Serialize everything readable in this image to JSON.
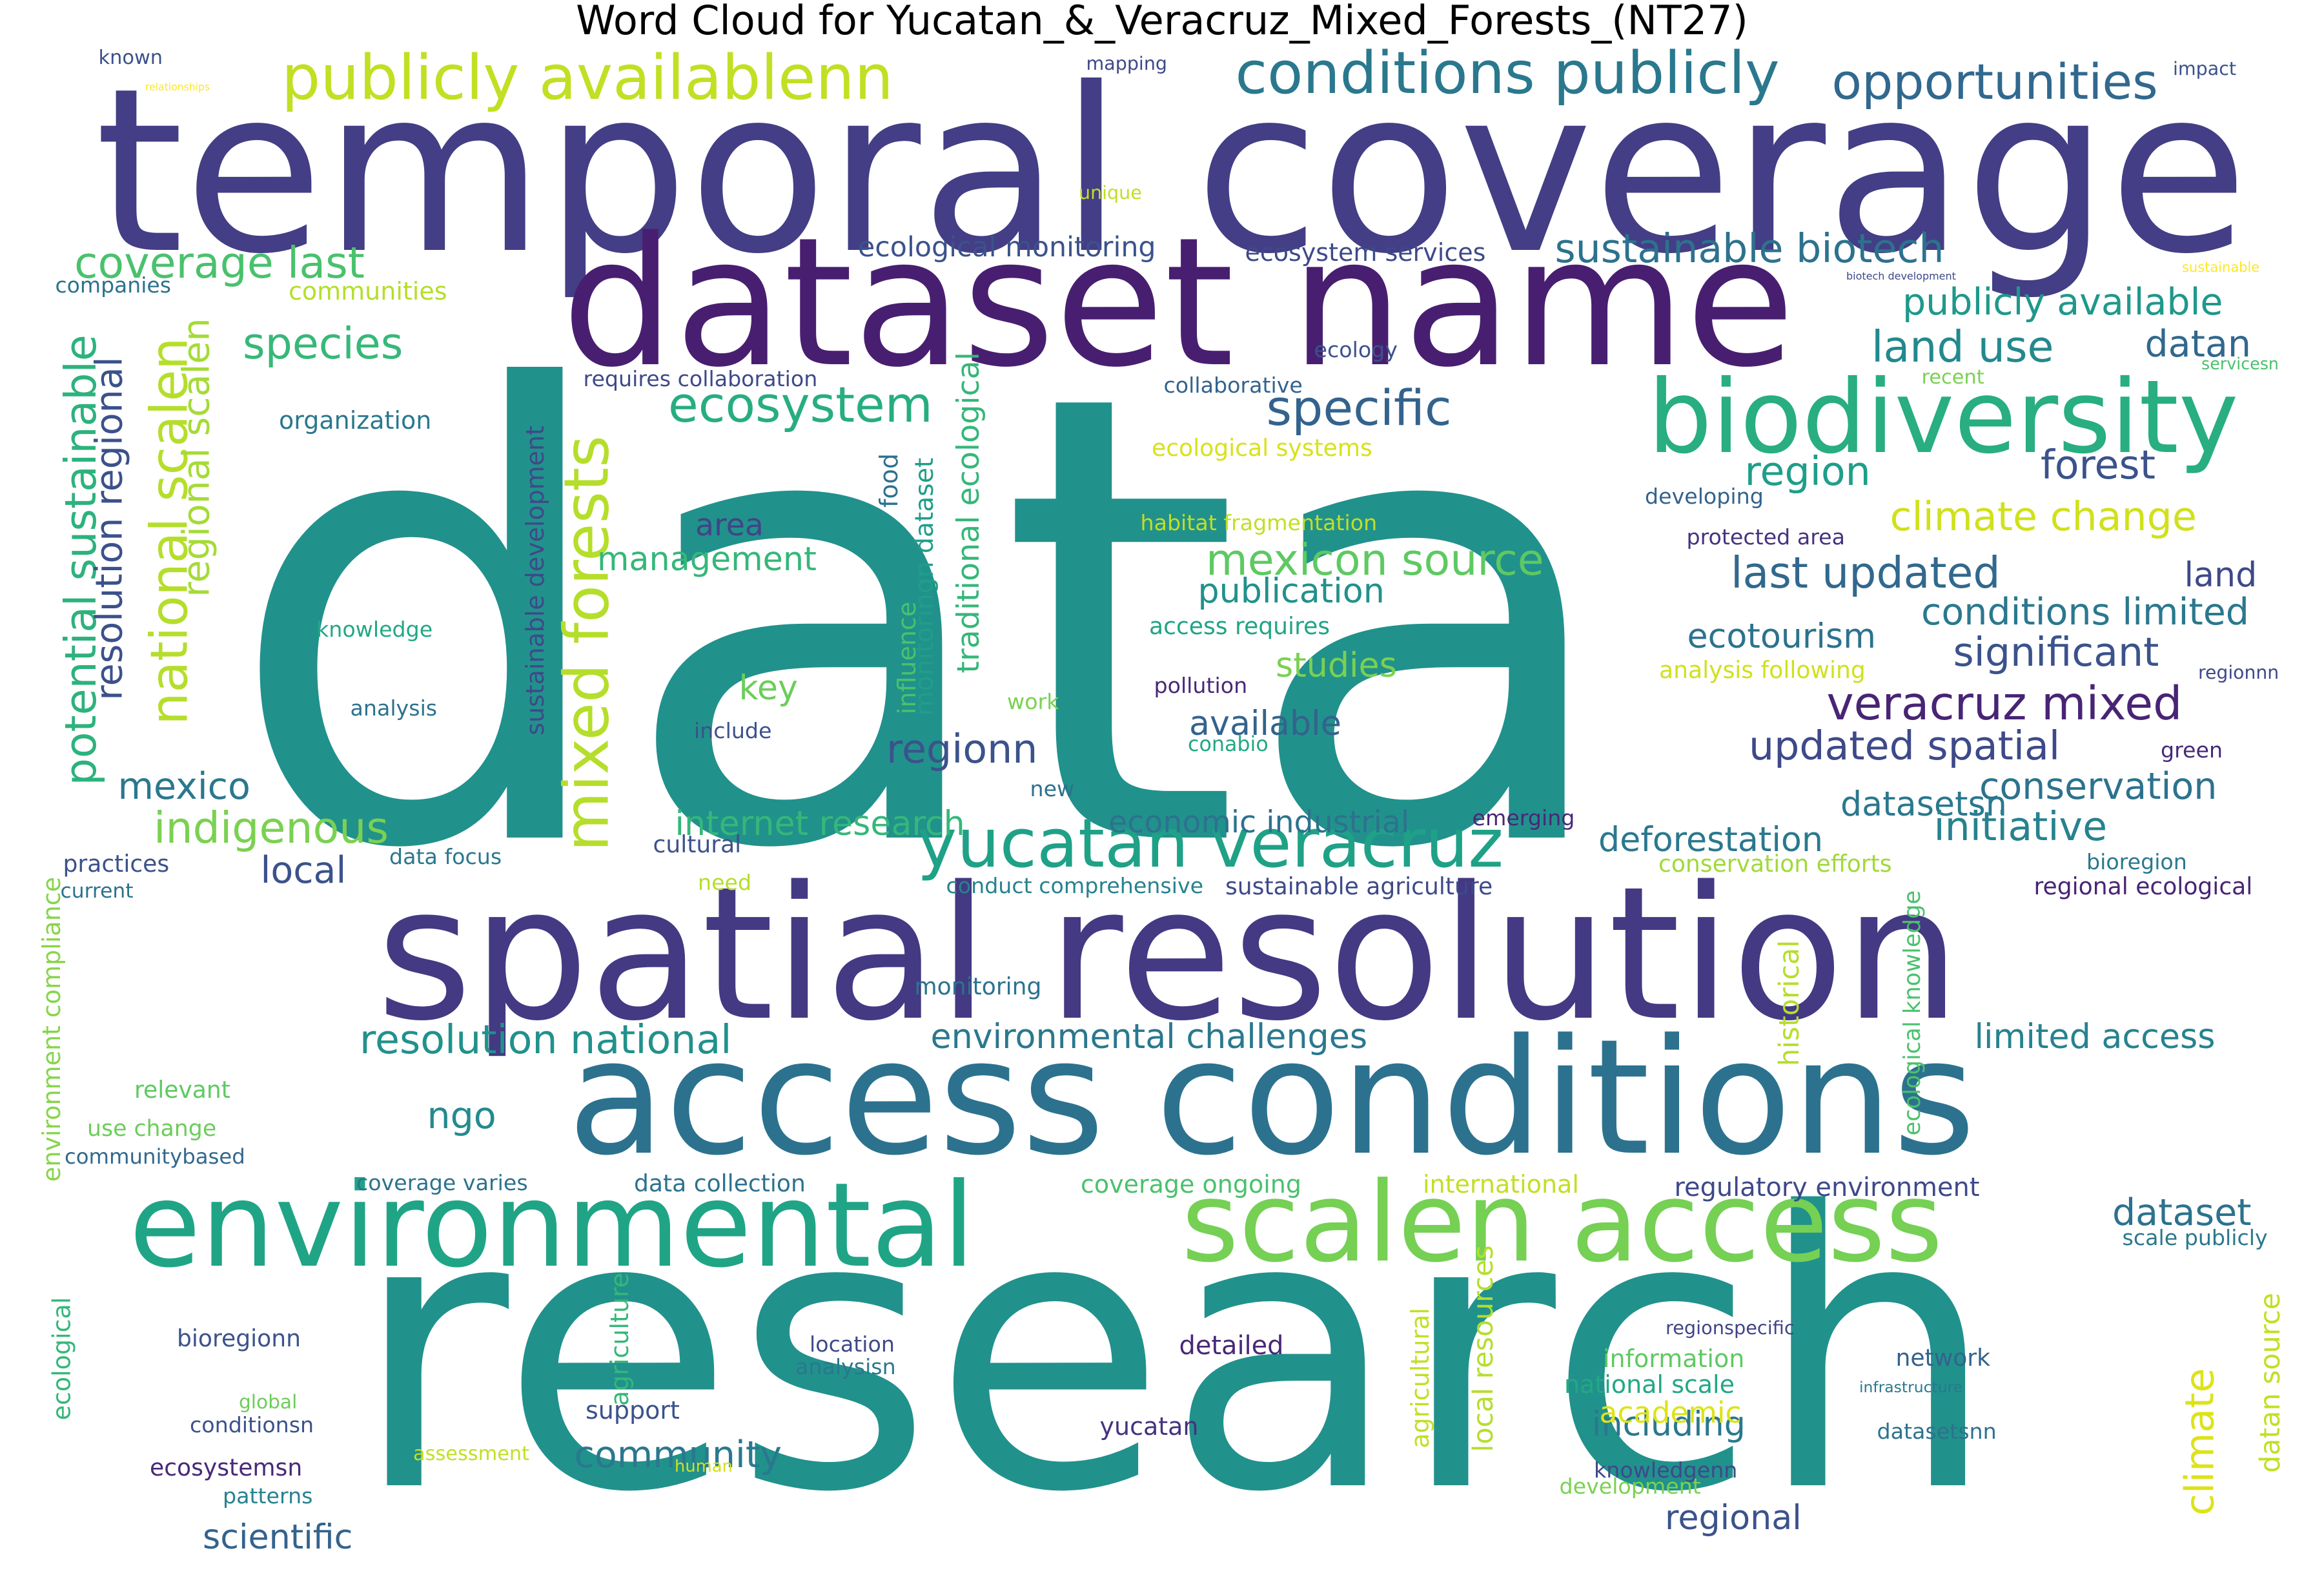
{
  "title": "Word Cloud for Yucatan_&_Veracruz_Mixed_Forests_(NT27)",
  "words": [
    {
      "text": "data",
      "color": "#21918c"
    },
    {
      "text": "research",
      "color": "#21918c"
    },
    {
      "text": "temporal coverage",
      "color": "#433e85"
    },
    {
      "text": "spatial resolution",
      "color": "#443983"
    },
    {
      "text": "access conditions",
      "color": "#2c728e"
    },
    {
      "text": "dataset name",
      "color": "#481f70"
    },
    {
      "text": "environmental",
      "color": "#20a486"
    },
    {
      "text": "scalen access",
      "color": "#75d054"
    },
    {
      "text": "biodiversity",
      "color": "#28ae80"
    },
    {
      "text": "yucatan veracruz",
      "color": "#1fa187"
    },
    {
      "text": "publicly availablenn",
      "color": "#c2df23"
    },
    {
      "text": "conditions publicly",
      "color": "#2a788e"
    },
    {
      "text": "opportunities",
      "color": "#31688e"
    },
    {
      "text": "mixed forests",
      "color": "#b5de2b"
    },
    {
      "text": "ecosystem",
      "color": "#27ad81"
    },
    {
      "text": "specific",
      "color": "#33638d"
    },
    {
      "text": "species",
      "color": "#37b878"
    },
    {
      "text": "coverage last",
      "color": "#4ac16d"
    },
    {
      "text": "national scalen",
      "color": "#b5de2b"
    },
    {
      "text": "potential sustainable",
      "color": "#2db27d"
    },
    {
      "text": "resolution regional",
      "color": "#3b518b"
    },
    {
      "text": "regional scalen",
      "color": "#a5db36"
    },
    {
      "text": "sustainable biotech",
      "color": "#2c728e"
    },
    {
      "text": "publicly available",
      "color": "#1f988b"
    },
    {
      "text": "land use",
      "color": "#23898e"
    },
    {
      "text": "datan",
      "color": "#31688e"
    },
    {
      "text": "region",
      "color": "#1f9e89"
    },
    {
      "text": "forest",
      "color": "#3b528b"
    },
    {
      "text": "climate change",
      "color": "#d0e11c"
    },
    {
      "text": "last updated",
      "color": "#31688e"
    },
    {
      "text": "land",
      "color": "#3e4989"
    },
    {
      "text": "conditions limited",
      "color": "#2a788e"
    },
    {
      "text": "significant",
      "color": "#3b528b"
    },
    {
      "text": "ecotourism",
      "color": "#2c728e"
    },
    {
      "text": "veracruz mixed",
      "color": "#482475"
    },
    {
      "text": "updated spatial",
      "color": "#3e4989"
    },
    {
      "text": "conservation",
      "color": "#2c728e"
    },
    {
      "text": "datasetsn",
      "color": "#2a788e"
    },
    {
      "text": "initiative",
      "color": "#26828e"
    },
    {
      "text": "deforestation",
      "color": "#2a788e"
    },
    {
      "text": "mexicon source",
      "color": "#5ec962"
    },
    {
      "text": "publication",
      "color": "#21918c"
    },
    {
      "text": "studies",
      "color": "#7ad151"
    },
    {
      "text": "available",
      "color": "#33638d"
    },
    {
      "text": "regionn",
      "color": "#3b528b"
    },
    {
      "text": "management",
      "color": "#35b779"
    },
    {
      "text": "area",
      "color": "#414487"
    },
    {
      "text": "key",
      "color": "#6ccd5a"
    },
    {
      "text": "indigenous",
      "color": "#7ad151"
    },
    {
      "text": "mexico",
      "color": "#2a788e"
    },
    {
      "text": "local",
      "color": "#3b528b"
    },
    {
      "text": "internet research",
      "color": "#35b779"
    },
    {
      "text": "economic industrial",
      "color": "#2c728e"
    },
    {
      "text": "resolution national",
      "color": "#21918c"
    },
    {
      "text": "environmental challenges",
      "color": "#2a788e"
    },
    {
      "text": "limited access",
      "color": "#26828e"
    },
    {
      "text": "ngo",
      "color": "#238a8d"
    },
    {
      "text": "dataset",
      "color": "#2c728e"
    },
    {
      "text": "regional",
      "color": "#3b528b"
    },
    {
      "text": "community",
      "color": "#2a788e"
    },
    {
      "text": "scientific",
      "color": "#33638d"
    },
    {
      "text": "climate",
      "color": "#dde318"
    },
    {
      "text": "including",
      "color": "#2a788e"
    },
    {
      "text": "ecological monitoring",
      "color": "#3b528b"
    },
    {
      "text": "ecosystem services",
      "color": "#3e4989"
    },
    {
      "text": "organization",
      "color": "#2a788e"
    },
    {
      "text": "communities",
      "color": "#b5de2b"
    },
    {
      "text": "companies",
      "color": "#2c728e"
    },
    {
      "text": "requires collaboration",
      "color": "#3e4989"
    },
    {
      "text": "collaborative",
      "color": "#33638d"
    },
    {
      "text": "ecology",
      "color": "#3b528b"
    },
    {
      "text": "ecological systems",
      "color": "#d8e219"
    },
    {
      "text": "habitat fragmentation",
      "color": "#c2df23"
    },
    {
      "text": "sustainable development",
      "color": "#3e4989"
    },
    {
      "text": "monitoringn dataset",
      "color": "#1f9e89"
    },
    {
      "text": "traditional ecological",
      "color": "#35b779"
    },
    {
      "text": "food",
      "color": "#2c728e"
    },
    {
      "text": "influence",
      "color": "#4ac16d"
    },
    {
      "text": "access requires",
      "color": "#20a486"
    },
    {
      "text": "pollution",
      "color": "#482878"
    },
    {
      "text": "work",
      "color": "#7ad151"
    },
    {
      "text": "include",
      "color": "#3b528b"
    },
    {
      "text": "analysis",
      "color": "#2c728e"
    },
    {
      "text": "knowledge",
      "color": "#22a884"
    },
    {
      "text": "conabio",
      "color": "#22a884"
    },
    {
      "text": "protected area",
      "color": "#46327e"
    },
    {
      "text": "developing",
      "color": "#33638d"
    },
    {
      "text": "analysis following",
      "color": "#d0e11c"
    },
    {
      "text": "regionnn",
      "color": "#3e4989"
    },
    {
      "text": "green",
      "color": "#482878"
    },
    {
      "text": "new",
      "color": "#2c728e"
    },
    {
      "text": "emerging",
      "color": "#482878"
    },
    {
      "text": "data focus",
      "color": "#2a788e"
    },
    {
      "text": "cultural",
      "color": "#3b528b"
    },
    {
      "text": "practices",
      "color": "#3b528b"
    },
    {
      "text": "current",
      "color": "#2c728e"
    },
    {
      "text": "need",
      "color": "#b5de2b"
    },
    {
      "text": "conduct comprehensive",
      "color": "#26828e"
    },
    {
      "text": "sustainable agriculture",
      "color": "#3e4989"
    },
    {
      "text": "conservation efforts",
      "color": "#a0da39"
    },
    {
      "text": "bioregion",
      "color": "#2a788e"
    },
    {
      "text": "regional ecological",
      "color": "#482475"
    },
    {
      "text": "monitoring",
      "color": "#2c728e"
    },
    {
      "text": "environment compliance",
      "color": "#86d549"
    },
    {
      "text": "relevant",
      "color": "#5ec962"
    },
    {
      "text": "use change",
      "color": "#6ccd5a"
    },
    {
      "text": "communitybased",
      "color": "#31688e"
    },
    {
      "text": "coverage varies",
      "color": "#2c728e"
    },
    {
      "text": "data collection",
      "color": "#2c728e"
    },
    {
      "text": "coverage ongoing",
      "color": "#4ac16d"
    },
    {
      "text": "international",
      "color": "#c2df23"
    },
    {
      "text": "regulatory environment",
      "color": "#3e4989"
    },
    {
      "text": "scale publicly",
      "color": "#2a788e"
    },
    {
      "text": "historical",
      "color": "#b5de2b"
    },
    {
      "text": "ecological knowledge",
      "color": "#4ac16d"
    },
    {
      "text": "ecological",
      "color": "#35b779"
    },
    {
      "text": "bioregionn",
      "color": "#3b528b"
    },
    {
      "text": "global",
      "color": "#6ccd5a"
    },
    {
      "text": "conditionsn",
      "color": "#3b528b"
    },
    {
      "text": "ecosystemsn",
      "color": "#482878"
    },
    {
      "text": "assessment",
      "color": "#c2df23"
    },
    {
      "text": "patterns",
      "color": "#26828e"
    },
    {
      "text": "agriculture",
      "color": "#35b779"
    },
    {
      "text": "support",
      "color": "#3b528b"
    },
    {
      "text": "human",
      "color": "#d0e11c"
    },
    {
      "text": "location",
      "color": "#3e4989"
    },
    {
      "text": "analysisn",
      "color": "#2a788e"
    },
    {
      "text": "detailed",
      "color": "#482878"
    },
    {
      "text": "yucatan",
      "color": "#46327e"
    },
    {
      "text": "agricultural",
      "color": "#c2df23"
    },
    {
      "text": "local resources",
      "color": "#b5de2b"
    },
    {
      "text": "information",
      "color": "#5ec962"
    },
    {
      "text": "national scale",
      "color": "#22a884"
    },
    {
      "text": "academic",
      "color": "#dde318"
    },
    {
      "text": "regionspecific",
      "color": "#414487"
    },
    {
      "text": "knowledgenn",
      "color": "#3e4989"
    },
    {
      "text": "development",
      "color": "#7ad151"
    },
    {
      "text": "network",
      "color": "#33638d"
    },
    {
      "text": "infrastructure",
      "color": "#2a788e"
    },
    {
      "text": "datasetsnn",
      "color": "#2c728e"
    },
    {
      "text": "datan source",
      "color": "#c2df23"
    },
    {
      "text": "known",
      "color": "#3b528b"
    },
    {
      "text": "relationships",
      "color": "#fde725"
    },
    {
      "text": "mapping",
      "color": "#3e4989"
    },
    {
      "text": "unique",
      "color": "#c2df23"
    },
    {
      "text": "impact",
      "color": "#3b528b"
    },
    {
      "text": "sustainable",
      "color": "#fde725"
    },
    {
      "text": "biotech development",
      "color": "#3e4989"
    },
    {
      "text": "recent",
      "color": "#7ad151"
    },
    {
      "text": "servicesn",
      "color": "#4ac16d"
    }
  ]
}
